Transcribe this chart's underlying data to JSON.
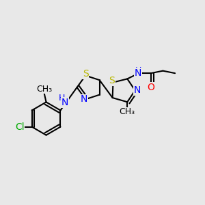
{
  "bg_color": "#e8e8e8",
  "atom_colors": {
    "S": "#b8b800",
    "N": "#0000ff",
    "O": "#ff0000",
    "C": "#000000",
    "Cl": "#00aa00",
    "H": "#0000ff"
  },
  "bond_color": "#000000",
  "bond_width": 1.5,
  "font_size": 10
}
